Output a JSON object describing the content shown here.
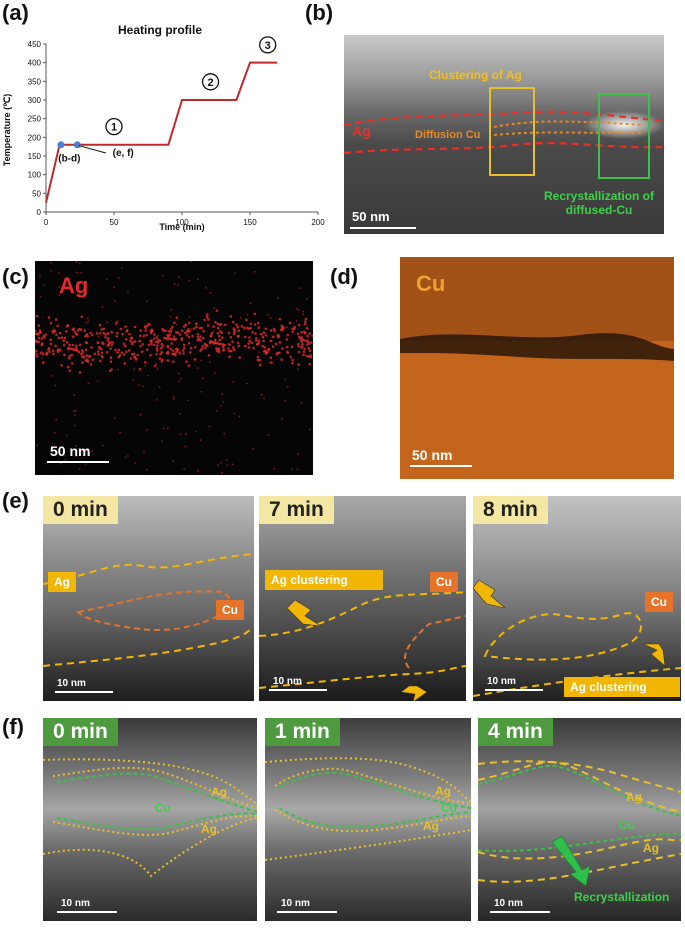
{
  "panels": {
    "a": {
      "label": "(a)"
    },
    "b": {
      "label": "(b)"
    },
    "c": {
      "label": "(c)"
    },
    "d": {
      "label": "(d)"
    },
    "e": {
      "label": "(e)"
    },
    "f": {
      "label": "(f)"
    }
  },
  "chart_data": {
    "type": "line",
    "title": "Heating profile",
    "xlabel": "Time (min)",
    "ylabel": "Temperature (℃)",
    "xlim": [
      0,
      200
    ],
    "ylim": [
      0,
      450
    ],
    "xticks": [
      "0",
      "50",
      "100",
      "150",
      "200"
    ],
    "yticks": [
      "0",
      "50",
      "100",
      "150",
      "200",
      "250",
      "300",
      "350",
      "400",
      "450"
    ],
    "grid": false,
    "line_color": "#c0282d",
    "marker_color": "#4a7fd6",
    "series": [
      {
        "x": [
          0,
          10,
          90,
          100,
          140,
          150,
          170
        ],
        "y": [
          25,
          180,
          180,
          300,
          300,
          400,
          400
        ]
      }
    ],
    "markers": [
      {
        "x": 11,
        "y": 180
      },
      {
        "x": 23,
        "y": 180
      }
    ],
    "annotations": [
      {
        "text": "(b-d)",
        "x": 9,
        "y": 135
      },
      {
        "text": "(e, f)",
        "x": 49,
        "y": 150
      },
      {
        "text": "①",
        "x": 50,
        "y": 218
      },
      {
        "text": "②",
        "x": 121,
        "y": 338
      },
      {
        "text": "③",
        "x": 163,
        "y": 437
      }
    ]
  },
  "panel_b": {
    "ag_label": "Ag",
    "clustering_label": "Clustering of Ag",
    "diffusion_label": "Diffusion Cu",
    "recryst_label_1": "Recrystallization of",
    "recryst_label_2": "diffused-Cu",
    "scale": "50 nm"
  },
  "panel_c": {
    "element": "Ag",
    "scale": "50 nm",
    "color": "#e8282a"
  },
  "panel_d": {
    "element": "Cu",
    "scale": "50 nm",
    "color": "#f0a030"
  },
  "panel_e": {
    "frames": [
      {
        "time": "0 min",
        "scale": "10 nm",
        "ag": "Ag",
        "cu": "Cu"
      },
      {
        "time": "7 min",
        "scale": "10 nm",
        "ag_cluster": "Ag clustering",
        "cu": "Cu"
      },
      {
        "time": "8 min",
        "scale": "10 nm",
        "ag_cluster": "Ag clustering",
        "cu": "Cu"
      }
    ],
    "ag_box_color": "#f2b705",
    "cu_box_color": "#e5732a"
  },
  "panel_f": {
    "frames": [
      {
        "time": "0 min",
        "scale": "10 nm",
        "ag1": "Ag",
        "cu": "Cu",
        "ag2": "Ag"
      },
      {
        "time": "1 min",
        "scale": "10 nm",
        "ag1": "Ag",
        "cu": "Cu",
        "ag2": "Ag"
      },
      {
        "time": "4 min",
        "scale": "10 nm",
        "ag1": "Ag",
        "cu": "Cu",
        "ag2": "Ag",
        "recryst": "Recrystallization"
      }
    ]
  }
}
